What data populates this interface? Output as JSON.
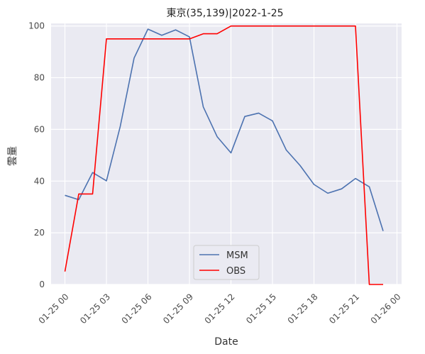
{
  "chart_data": {
    "type": "line",
    "title": "東京(35,139)|2022-1-25",
    "xlabel": "Date",
    "ylabel": "雲量",
    "xlim": [
      "2022-01-24 23:00",
      "2022-01-26 00:20"
    ],
    "ylim": [
      0,
      101
    ],
    "x_ticks": [
      "01-25 00",
      "01-25 03",
      "01-25 06",
      "01-25 09",
      "01-25 12",
      "01-25 15",
      "01-25 18",
      "01-25 21",
      "01-26 00"
    ],
    "y_ticks": [
      "0",
      "20",
      "40",
      "60",
      "80",
      "100"
    ],
    "grid": true,
    "legend_position": "bottom-center",
    "series": [
      {
        "name": "MSM",
        "color": "#4c72b0",
        "x": [
          "2022-01-25 00:00",
          "2022-01-25 01:00",
          "2022-01-25 02:00",
          "2022-01-25 03:00",
          "2022-01-25 04:00",
          "2022-01-25 05:00",
          "2022-01-25 06:00",
          "2022-01-25 07:00",
          "2022-01-25 08:00",
          "2022-01-25 09:00",
          "2022-01-25 10:00",
          "2022-01-25 11:00",
          "2022-01-25 12:00",
          "2022-01-25 13:00",
          "2022-01-25 14:00",
          "2022-01-25 15:00",
          "2022-01-25 16:00",
          "2022-01-25 17:00",
          "2022-01-25 18:00",
          "2022-01-25 19:00",
          "2022-01-25 20:00",
          "2022-01-25 21:00",
          "2022-01-25 22:00",
          "2022-01-25 23:00"
        ],
        "values": [
          34.5,
          32.8,
          43.3,
          40.1,
          61.2,
          87.6,
          98.8,
          96.4,
          98.5,
          95.8,
          68.7,
          57.2,
          50.9,
          65.0,
          66.3,
          63.3,
          52.0,
          46.0,
          38.7,
          35.3,
          37.0,
          41.0,
          37.8,
          20.7
        ]
      },
      {
        "name": "OBS",
        "color": "#ff0000",
        "x": [
          "2022-01-25 00:00",
          "2022-01-25 01:00",
          "2022-01-25 02:00",
          "2022-01-25 03:00",
          "2022-01-25 04:00",
          "2022-01-25 05:00",
          "2022-01-25 06:00",
          "2022-01-25 07:00",
          "2022-01-25 08:00",
          "2022-01-25 09:00",
          "2022-01-25 10:00",
          "2022-01-25 11:00",
          "2022-01-25 12:00",
          "2022-01-25 13:00",
          "2022-01-25 14:00",
          "2022-01-25 15:00",
          "2022-01-25 16:00",
          "2022-01-25 17:00",
          "2022-01-25 18:00",
          "2022-01-25 19:00",
          "2022-01-25 20:00",
          "2022-01-25 21:00",
          "2022-01-25 22:00",
          "2022-01-25 23:00"
        ],
        "values": [
          5,
          35,
          35,
          95,
          95,
          95,
          95,
          95,
          95,
          95,
          97,
          97,
          100,
          100,
          100,
          100,
          100,
          100,
          100,
          100,
          100,
          100,
          0,
          0
        ]
      }
    ]
  }
}
